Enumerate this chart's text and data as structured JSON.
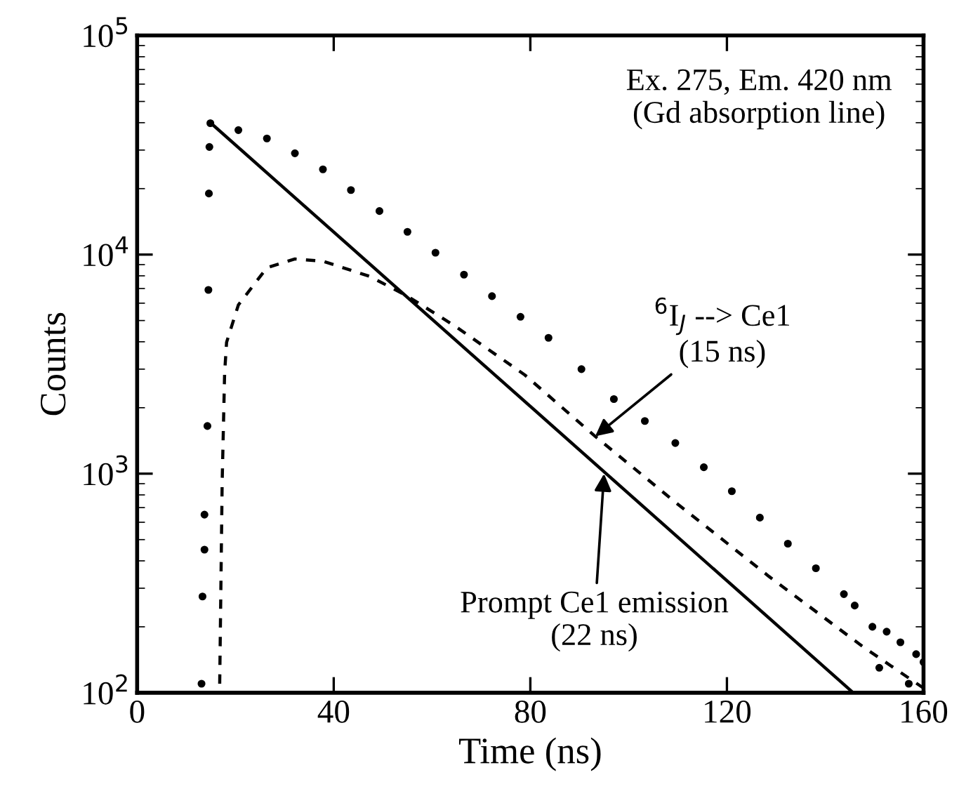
{
  "chart_data": {
    "type": "scatter",
    "xlabel": "Time (ns)",
    "ylabel": "Counts",
    "log": "y",
    "xlim": [
      0,
      160
    ],
    "xticks": [
      0,
      40,
      80,
      120,
      160
    ],
    "ylim": [
      100,
      100000
    ],
    "yticks": [
      {
        "value": 100,
        "label": "10$^{2}$"
      },
      {
        "value": 1000,
        "label": "10$^{3}$"
      },
      {
        "value": 10000,
        "label": "10$^{4}$"
      },
      {
        "value": 100000,
        "label": "10$^{5}$"
      }
    ],
    "grid": false,
    "series": [
      {
        "color": "#000000",
        "marker": "circle",
        "x": [
          13.1,
          13.3,
          13.7,
          13.7,
          14.3,
          14.5,
          14.6,
          14.7,
          14.9,
          20.6,
          26.4,
          32.1,
          37.8,
          43.5,
          49.3,
          55,
          60.7,
          66.5,
          72.2,
          78,
          83.7,
          90.4,
          97,
          103.3,
          109.5,
          115.3,
          121,
          126.7,
          132.4,
          138.1,
          143.8,
          146,
          149.6,
          151,
          152.5,
          155.3,
          157,
          158.5,
          160
        ],
        "values": [
          110,
          275,
          450,
          650,
          1650,
          6900,
          19000,
          31000,
          39800,
          37000,
          33900,
          29000,
          24500,
          19700,
          15800,
          12700,
          10200,
          8100,
          6460,
          5200,
          4170,
          3000,
          2190,
          1740,
          1380,
          1070,
          832,
          630,
          479,
          370,
          282,
          250,
          200,
          130,
          190,
          170,
          110,
          150,
          138
        ]
      },
      {
        "type": "line",
        "color": "#000000",
        "line_style": "solid",
        "x": [
          14.9,
          145.7
        ],
        "values": [
          40000,
          100
        ]
      },
      {
        "type": "line",
        "color": "#000000",
        "line_style": "dashed",
        "x": [
          16.8,
          17.3,
          17.8,
          18.2,
          20.6,
          26.4,
          32.1,
          37.8,
          47.4,
          55,
          64.6,
          78.9,
          93.2,
          109.5,
          128.6,
          147.7,
          160
        ],
        "values": [
          110,
          912,
          2880,
          3980,
          5890,
          8710,
          9550,
          9330,
          7940,
          6460,
          4730,
          2820,
          1480,
          741,
          339,
          162,
          105
        ]
      }
    ],
    "annotations": [
      "Ex. 275, Em. 420 nm\n(Gd absorption line)",
      {
        "text": "$^{6}$I$_{J}$ --> Ce1\n(15 ns)",
        "x": 93.2,
        "y": 1480
      },
      {
        "text": "Prompt Ce1 emission\n(22 ns)",
        "x": 95,
        "y": 1000
      }
    ]
  }
}
